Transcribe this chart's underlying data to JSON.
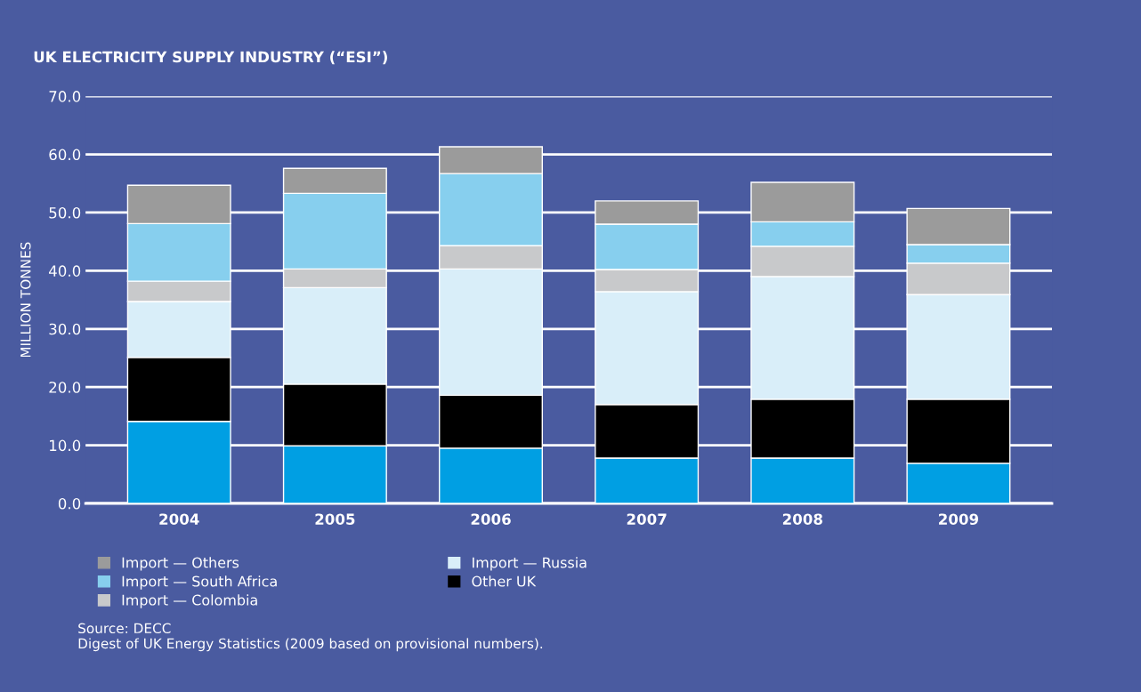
{
  "chart_data": {
    "type": "bar",
    "title": "UK ELECTRICITY SUPPLY INDUSTRY (“ESI”)",
    "ylabel": "MILLION TONNES",
    "categories": [
      "2004",
      "2005",
      "2006",
      "2007",
      "2008",
      "2009"
    ],
    "stacked": true,
    "series": [
      {
        "color": "#009fe3",
        "values": [
          14.1,
          9.9,
          9.5,
          7.8,
          7.8,
          6.9
        ]
      },
      {
        "name": "Other UK",
        "color": "#000000",
        "values": [
          11.0,
          10.6,
          9.1,
          9.2,
          10.1,
          11.0
        ]
      },
      {
        "name": "Import — Russia",
        "color": "#d9eef9",
        "values": [
          9.6,
          16.6,
          21.7,
          19.4,
          21.1,
          18.0
        ]
      },
      {
        "name": "Import — Colombia",
        "color": "#c8c9cb",
        "values": [
          3.5,
          3.2,
          4.0,
          3.8,
          5.2,
          5.4
        ]
      },
      {
        "name": "Import — South Africa",
        "color": "#87cfee",
        "values": [
          9.9,
          13.0,
          12.4,
          7.8,
          4.2,
          3.2
        ]
      },
      {
        "name": "Import — Others",
        "color": "#9b9b9b",
        "values": [
          6.6,
          4.3,
          4.6,
          4.0,
          6.8,
          6.2
        ]
      }
    ],
    "ylim": [
      0,
      70
    ],
    "yticks": [
      {
        "value": 0,
        "label": "0.0"
      },
      {
        "value": 10,
        "label": "10.0"
      },
      {
        "value": 20,
        "label": "20.0"
      },
      {
        "value": 30,
        "label": "30.0"
      },
      {
        "value": 40,
        "label": "40.0"
      },
      {
        "value": 50,
        "label": "50.0"
      },
      {
        "value": 60,
        "label": "60.0"
      },
      {
        "value": 70,
        "label": "70.0"
      }
    ],
    "grid": "y",
    "legend": "bottom",
    "annotations": [
      "Source: DECC",
      "Digest of UK Energy Statistics (2009 based on provisional numbers)."
    ]
  }
}
